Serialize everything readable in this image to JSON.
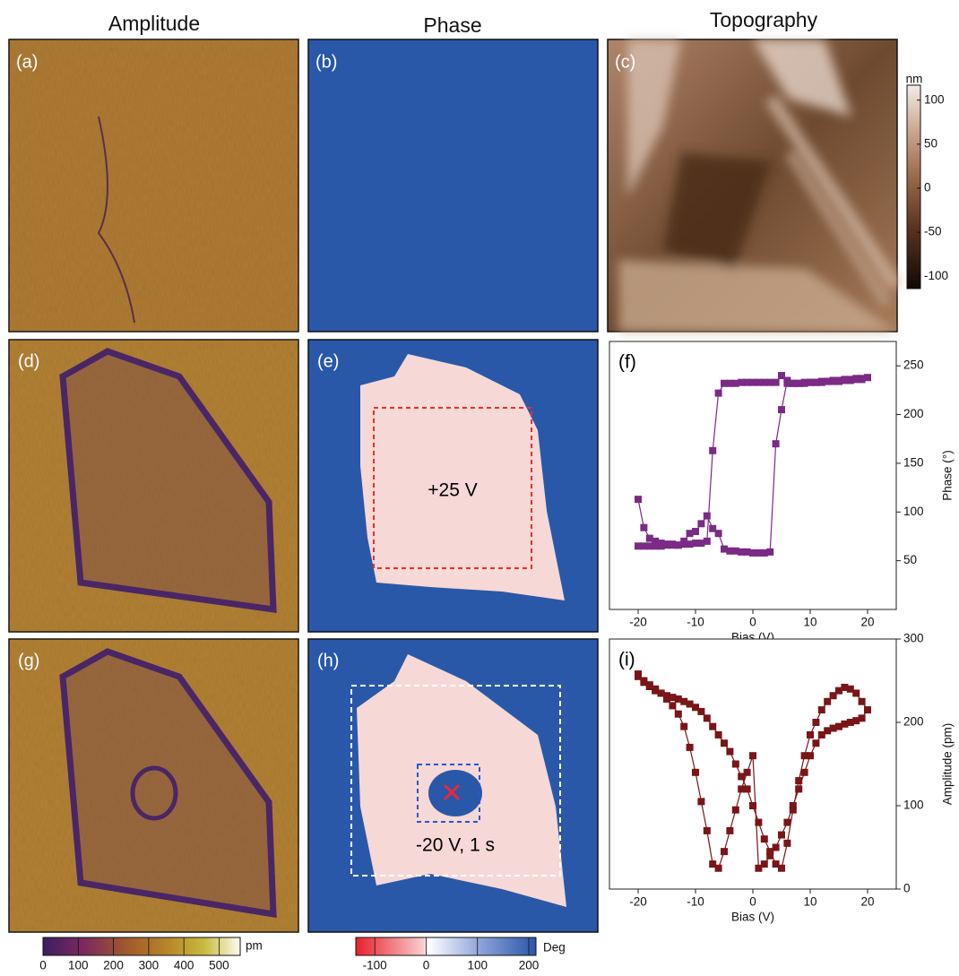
{
  "column_titles": [
    "Amplitude",
    "Phase",
    "Topography"
  ],
  "panel_labels": [
    "(a)",
    "(b)",
    "(c)",
    "(d)",
    "(e)",
    "(g)",
    "(h)"
  ],
  "annotations": [
    "+25 V",
    "-20 V, 1 s"
  ],
  "colorbars": [
    {
      "unit": "nm",
      "lim": [
        -114,
        117
      ],
      "ticks": [
        100,
        50,
        0,
        -50,
        -100
      ]
    },
    {
      "unit": "pm",
      "lim": [
        0,
        560
      ],
      "ticks": [
        0,
        100,
        200,
        300,
        400,
        500
      ]
    },
    {
      "unit": "Deg",
      "lim": [
        -137,
        214
      ],
      "ticks": [
        -100,
        0,
        100,
        200
      ]
    }
  ],
  "chart_data": [
    {
      "type": "line",
      "panel_label": "(f)",
      "x_label": "Bias (V)",
      "y_label": "Phase (°)",
      "xlim": [
        -25,
        25
      ],
      "xticks": [
        -20,
        -10,
        0,
        10,
        20
      ],
      "ylim": [
        0,
        275
      ],
      "yticks": [
        50,
        100,
        150,
        200,
        250
      ],
      "x": [
        -20,
        -19,
        -18,
        -17,
        -16,
        -15,
        -14,
        -13,
        -12,
        -11,
        -10,
        -9,
        -8,
        -7,
        -6,
        -5,
        -4,
        -3,
        -2,
        -1,
        0,
        1,
        2,
        3,
        4,
        5,
        6,
        7,
        8,
        9,
        10,
        11,
        12,
        13,
        14,
        15,
        16,
        17,
        18,
        19,
        20,
        19,
        18,
        17,
        16,
        15,
        14,
        13,
        12,
        11,
        10,
        9,
        8,
        7,
        6,
        5,
        4,
        3,
        2,
        1,
        0,
        -1,
        -2,
        -3,
        -4,
        -5,
        -6,
        -7,
        -8,
        -9,
        -10,
        -11,
        -12,
        -13,
        -14,
        -15,
        -16,
        -17,
        -18,
        -19,
        -20
      ],
      "series": [
        {
          "color": "#7b2a86",
          "values": [
            113,
            84,
            73,
            70,
            68,
            67,
            67,
            66,
            70,
            78,
            80,
            88,
            96,
            83,
            78,
            62,
            60,
            60,
            59,
            59,
            58,
            58,
            58,
            59,
            170,
            205,
            235,
            232,
            232,
            233,
            233,
            233,
            234,
            234,
            235,
            235,
            236,
            236,
            237,
            237,
            238,
            236,
            236,
            235,
            235,
            234,
            234,
            234,
            233,
            233,
            233,
            232,
            232,
            232,
            232,
            240,
            233,
            233,
            233,
            233,
            233,
            233,
            233,
            232,
            232,
            232,
            222,
            163,
            70,
            68,
            68,
            67,
            67,
            66,
            66,
            66,
            65,
            65,
            65,
            65,
            65
          ]
        }
      ]
    },
    {
      "type": "line",
      "panel_label": "(i)",
      "x_label": "Bias (V)",
      "y_label": "Amplitude (pm)",
      "xlim": [
        -25,
        25
      ],
      "xticks": [
        -20,
        -10,
        0,
        10,
        20
      ],
      "ylim": [
        0,
        300
      ],
      "yticks": [
        0,
        100,
        200,
        300
      ],
      "x": [
        -20,
        -19,
        -18,
        -17,
        -16,
        -15,
        -14,
        -13,
        -12,
        -11,
        -10,
        -9,
        -8,
        -7,
        -6,
        -5,
        -4,
        -3,
        -2,
        -1,
        0,
        1,
        2,
        3,
        4,
        5,
        6,
        7,
        8,
        9,
        10,
        11,
        12,
        13,
        14,
        15,
        16,
        17,
        18,
        19,
        20,
        19,
        18,
        17,
        16,
        15,
        14,
        13,
        12,
        11,
        10,
        9,
        8,
        7,
        6,
        5,
        4,
        3,
        2,
        1,
        0,
        -1,
        -2,
        -3,
        -4,
        -5,
        -6,
        -7,
        -8,
        -9,
        -10,
        -11,
        -12,
        -13,
        -14,
        -15,
        -16,
        -17,
        -18,
        -19,
        -20
      ],
      "series": [
        {
          "color": "#7a1518",
          "values": [
            255,
            248,
            243,
            238,
            235,
            232,
            230,
            228,
            225,
            222,
            218,
            213,
            205,
            195,
            185,
            175,
            165,
            150,
            135,
            120,
            100,
            80,
            60,
            45,
            30,
            25,
            55,
            95,
            130,
            160,
            185,
            200,
            215,
            225,
            232,
            238,
            242,
            240,
            235,
            225,
            215,
            205,
            202,
            200,
            198,
            195,
            193,
            190,
            185,
            175,
            160,
            140,
            120,
            100,
            80,
            65,
            50,
            40,
            30,
            25,
            160,
            140,
            120,
            95,
            70,
            45,
            25,
            30,
            70,
            105,
            140,
            170,
            195,
            210,
            220,
            228,
            235,
            240,
            245,
            250,
            258
          ]
        }
      ]
    }
  ]
}
